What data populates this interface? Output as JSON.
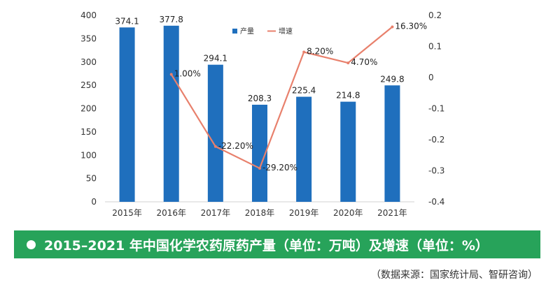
{
  "chart_data": {
    "type": "bar",
    "categories": [
      "2015年",
      "2016年",
      "2017年",
      "2018年",
      "2019年",
      "2020年",
      "2021年"
    ],
    "series": [
      {
        "name": "产量",
        "type": "bar",
        "axis": "left",
        "values": [
          374.1,
          377.8,
          294.1,
          208.3,
          225.4,
          214.8,
          249.8
        ],
        "labels": [
          "374.1",
          "377.8",
          "294.1",
          "208.3",
          "225.4",
          "214.8",
          "249.8"
        ],
        "color": "#1f6fbd"
      },
      {
        "name": "增速",
        "type": "line",
        "axis": "right",
        "values": [
          null,
          0.01,
          -0.222,
          -0.292,
          0.082,
          0.047,
          0.163
        ],
        "labels": [
          "",
          "1.00%",
          "-22.20%",
          "-29.20%",
          "8.20%",
          "4.70%",
          "16.30%"
        ],
        "color": "#e8806c"
      }
    ],
    "y_left": {
      "range": [
        0,
        400
      ],
      "ticks": [
        0,
        50,
        100,
        150,
        200,
        250,
        300,
        350,
        400
      ],
      "tick_labels": [
        "0",
        "50",
        "100",
        "150",
        "200",
        "250",
        "300",
        "350",
        "400"
      ]
    },
    "y_right": {
      "range": [
        -0.4,
        0.2
      ],
      "ticks": [
        0.2,
        0.1,
        0,
        -0.1,
        -0.2,
        -0.3,
        -0.4
      ],
      "tick_labels": [
        "0.2",
        "0.1",
        "0",
        "-0.1",
        "-0.2",
        "-0.3",
        "-0.4"
      ]
    },
    "legend_position": "top-right",
    "grid": false
  },
  "caption": {
    "title": "2015–2021 年中国化学农药原药产量（单位：万吨）及增速（单位：%）",
    "source": "（数据来源：国家统计局、智研咨询）"
  },
  "colors": {
    "caption_bg": "#27a35a",
    "bar": "#1f6fbd",
    "line": "#e8806c"
  }
}
